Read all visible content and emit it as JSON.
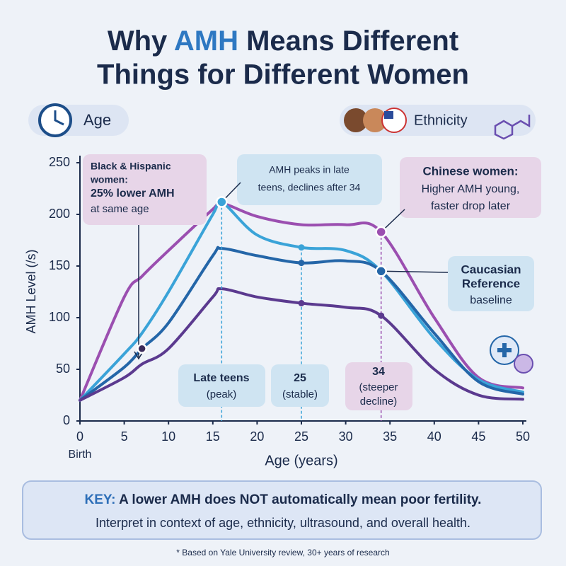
{
  "title_parts": [
    "Why ",
    "AMH",
    " Means Different",
    "Things for Different Women"
  ],
  "age_chip": "Age",
  "ethnicity_chip": "Ethnicity",
  "chart_data": {
    "type": "line",
    "x_label": "Age (years)",
    "y_label": "AMH Level (/s)",
    "x_origin_label": "Birth",
    "x": [
      0,
      5,
      7,
      10,
      15,
      16,
      20,
      25,
      30,
      34,
      40,
      45,
      50
    ],
    "series": [
      {
        "color": "#9b4fb0",
        "values": [
          20,
          120,
          140,
          165,
          205,
          211,
          198,
          190,
          190,
          183,
          100,
          42,
          32
        ]
      },
      {
        "color": "#3aa3d8",
        "values": [
          20,
          65,
          85,
          125,
          200,
          212,
          180,
          168,
          165,
          145,
          80,
          40,
          28
        ]
      },
      {
        "color": "#2466a8",
        "values": [
          20,
          52,
          70,
          95,
          160,
          167,
          160,
          153,
          155,
          145,
          85,
          38,
          26
        ]
      },
      {
        "color": "#5b3a8f",
        "values": [
          20,
          42,
          55,
          70,
          120,
          128,
          120,
          114,
          110,
          102,
          50,
          25,
          21
        ]
      }
    ],
    "xlim": [
      0,
      50
    ],
    "xticks": [
      0,
      5,
      10,
      15,
      20,
      25,
      30,
      35,
      40,
      45,
      50
    ],
    "ylim": [
      0,
      250
    ],
    "yticks": [
      0,
      50,
      100,
      150,
      200,
      250
    ],
    "grid": false,
    "callouts": [
      {
        "lines": [
          "Black & Hispanic",
          "women:",
          "25% lower AMH",
          "at same age"
        ]
      },
      {
        "lines": [
          "AMH peaks in late",
          "teens, declines after 34"
        ]
      },
      {
        "lines": [
          "Chinese women:",
          "Higher AMH young,",
          "faster drop later"
        ]
      },
      {
        "lines": [
          "Caucasian",
          "Reference",
          "baseline"
        ]
      }
    ],
    "phases": [
      {
        "lines": [
          "Late teens",
          "(peak)"
        ]
      },
      {
        "lines": [
          "25",
          "(stable)"
        ]
      },
      {
        "lines": [
          "34",
          "(steeper",
          "decline)"
        ]
      }
    ]
  },
  "key": {
    "lead": "KEY:",
    "headline": "A lower AMH does NOT automatically mean poor fertility.",
    "detail": "Interpret in context of age, ethnicity, ultrasound, and overall health."
  },
  "footnote": "* Based on Yale University review, 30+ years of research"
}
